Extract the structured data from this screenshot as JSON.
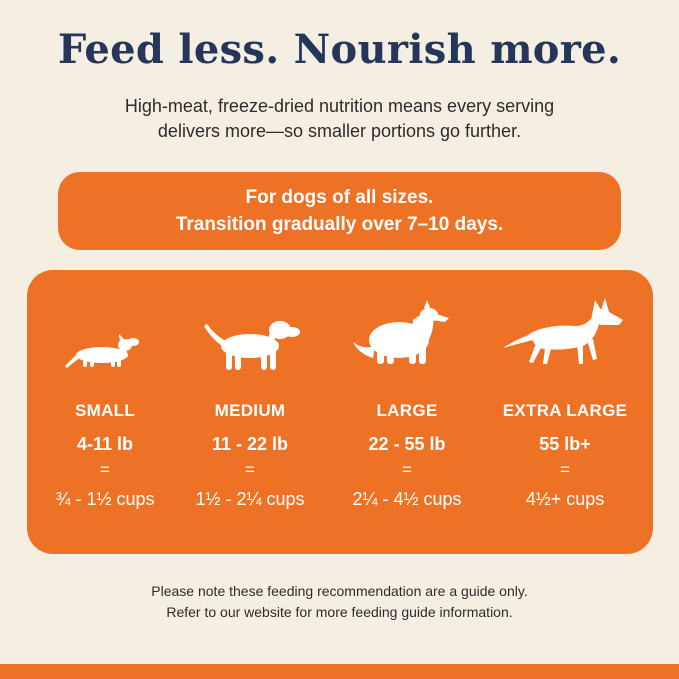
{
  "headline": "Feed less. Nourish more.",
  "subhead": {
    "line1": "High-meat, freeze-dried nutrition means every serving",
    "line2": "delivers more—so smaller portions go further."
  },
  "banner": {
    "line1": "For dogs of all sizes.",
    "line2": "Transition gradually over 7–10 days."
  },
  "sizes": [
    {
      "icon": "dachshund-icon",
      "label": "SMALL",
      "weight": "4-11 lb",
      "equals": "=",
      "cups": "¾ - 1½ cups"
    },
    {
      "icon": "terrier-icon",
      "label": "MEDIUM",
      "weight": "11 - 22 lb",
      "equals": "=",
      "cups": "1½ - 2¼ cups"
    },
    {
      "icon": "collie-icon",
      "label": "LARGE",
      "weight": "22 - 55 lb",
      "equals": "=",
      "cups": "2¼ - 4½ cups"
    },
    {
      "icon": "shepherd-icon",
      "label": "EXTRA LARGE",
      "weight": "55 lb+",
      "equals": "=",
      "cups": "4½+ cups"
    }
  ],
  "footnote": {
    "line1": "Please note these feeding recommendation are a guide only.",
    "line2": "Refer to our website for more feeding guide information."
  },
  "colors": {
    "accent": "#ee7226",
    "background": "#f4efe2",
    "headline": "#26365a"
  }
}
